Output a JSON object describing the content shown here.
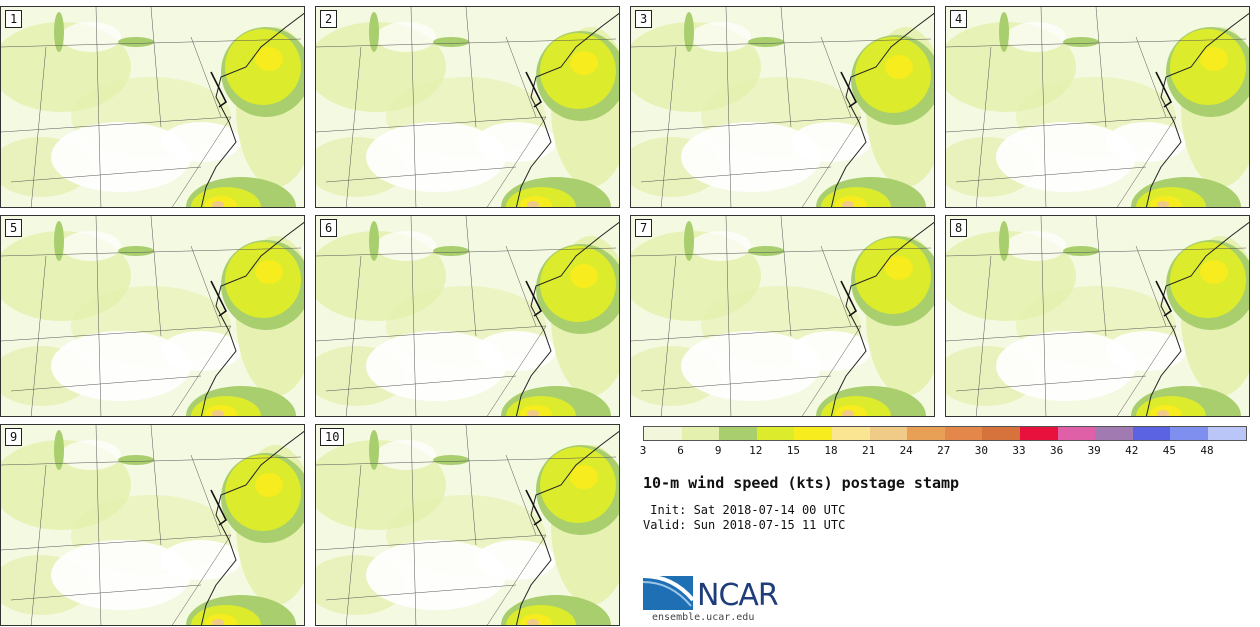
{
  "panels": [
    "1",
    "2",
    "3",
    "4",
    "5",
    "6",
    "7",
    "8",
    "9",
    "10"
  ],
  "colorbar": {
    "colors": [
      "#f2f7dc",
      "#e4f0ad",
      "#a9ce6e",
      "#dceb2b",
      "#f6ec1e",
      "#f9e592",
      "#f0cb88",
      "#e8a056",
      "#e3874a",
      "#d6733c",
      "#e8103c",
      "#e060a8",
      "#a27ab2",
      "#5c63e3",
      "#7f8ff0",
      "#b9c6f7"
    ],
    "labels": [
      "3",
      "6",
      "9",
      "12",
      "15",
      "18",
      "21",
      "24",
      "27",
      "30",
      "33",
      "36",
      "39",
      "42",
      "45",
      "48"
    ]
  },
  "title": "10-m wind speed (kts) postage stamp",
  "init": " Init: Sat 2018-07-14 00 UTC",
  "valid": "Valid: Sun 2018-07-15 11 UTC",
  "logo": {
    "name": "NCAR",
    "site": "ensemble.ucar.edu"
  }
}
